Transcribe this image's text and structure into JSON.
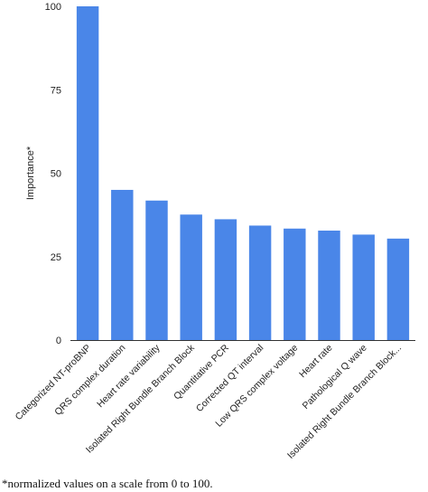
{
  "chart_data": {
    "type": "bar",
    "ylabel": "Importance*",
    "ylim": [
      0,
      100
    ],
    "yticks": [
      0,
      25,
      50,
      75,
      100
    ],
    "grid": false,
    "bar_color": "#4a86e8",
    "categories": [
      "Categorized NT-proBNP",
      "QRS complex duration",
      "Heart rate variability",
      "Isolated Right Bundle Branch Block",
      "Quantitative PCR",
      "Corrected QT interval",
      "Low QRS complex voltage",
      "Heart rate",
      "Pathological Q wave",
      "Isolated Right Bundle Branch Block..."
    ],
    "values": [
      100,
      45,
      41.8,
      37.6,
      36.2,
      34.3,
      33.4,
      32.8,
      31.6,
      30.4
    ]
  },
  "footnote": "*normalized values on a scale from 0 to 100."
}
